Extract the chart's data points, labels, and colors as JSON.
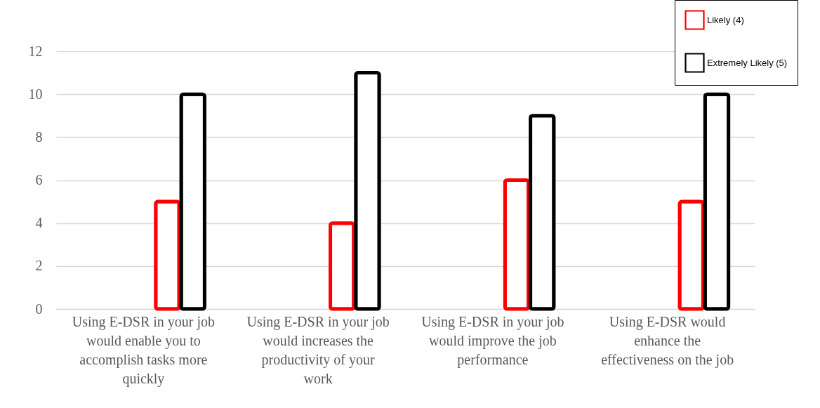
{
  "chart_data": {
    "type": "bar",
    "categories": [
      "Using E-DSR in your job would enable you to accomplish tasks more quickly",
      "Using E-DSR in your job would increases the productivity of your work",
      "Using E-DSR in your job would improve the job performance",
      "Using E-DSR would enhance the effectiveness on the job"
    ],
    "series": [
      {
        "name": "Likely (4)",
        "color": "#ff0000",
        "values": [
          5,
          4,
          6,
          5
        ]
      },
      {
        "name": "Extremely Likely (5)",
        "color": "#000000",
        "values": [
          10,
          11,
          9,
          10
        ]
      }
    ],
    "ylim": [
      0,
      12
    ],
    "yticks": [
      0,
      2,
      4,
      6,
      8,
      10,
      12
    ],
    "grid": "y",
    "legend": "top right"
  }
}
